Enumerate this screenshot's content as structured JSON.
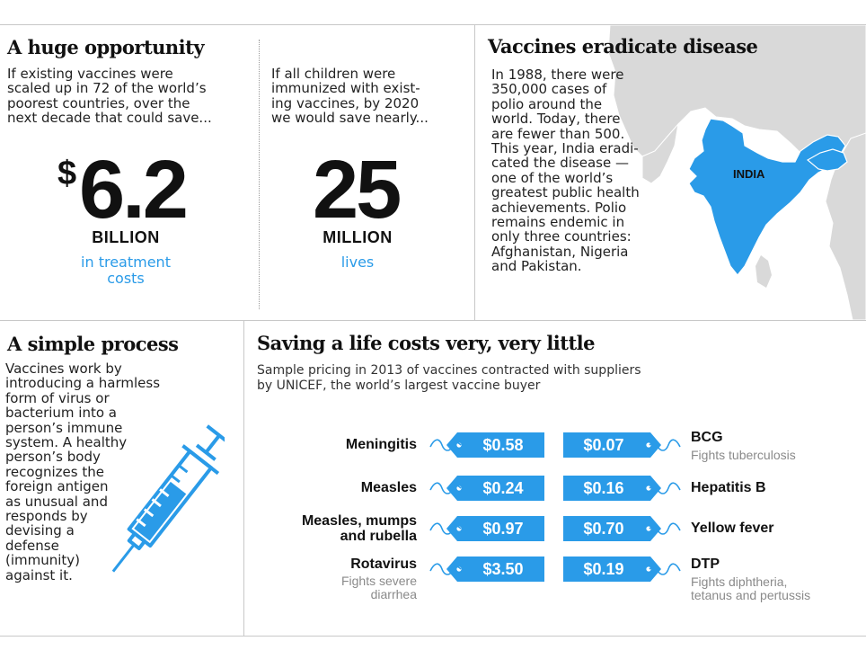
{
  "colors": {
    "accent": "#2a9be8",
    "rule": "#c8c8c8",
    "map_land": "#d9d9d9"
  },
  "opportunity": {
    "heading": "A huge opportunity",
    "left": {
      "text": "If existing vaccines were\nscaled up in 72 of the world’s\npoorest countries, over the\nnext decade that could save...",
      "currency": "$",
      "number": "6.2",
      "unit": "BILLION",
      "caption": "in treatment\ncosts"
    },
    "right": {
      "text": "If all children were\nimmunized with exist-\ning vaccines, by 2020\nwe would save nearly...",
      "number": "25",
      "unit": "MILLION",
      "caption": "lives"
    }
  },
  "eradicate": {
    "heading": "Vaccines eradicate disease",
    "text": "In 1988, there were\n350,000 cases of\npolio around the\nworld. Today, there\nare fewer than 500.\nThis year, India eradi-\ncated the disease —\none of the world’s\ngreatest public health\nachievements. Polio\nremains endemic in\nonly three countries:\nAfghanistan, Nigeria\nand Pakistan.",
    "map_label": "INDIA",
    "map_icon": "india-map"
  },
  "process": {
    "heading": "A simple process",
    "text": "Vaccines work by\nintroducing a harmless\nform of virus or\nbacterium into a\nperson’s immune\nsystem. A healthy\nperson’s body\nrecognizes the\nforeign antigen\nas unusual and\nresponds by\ndevising a\ndefense\n(immunity)\nagainst it.",
    "icon": "syringe-icon"
  },
  "pricing": {
    "heading": "Saving a life costs very, very little",
    "subtitle": "Sample pricing in 2013 of vaccines contracted with suppliers\nby UNICEF, the world’s largest vaccine buyer",
    "left": [
      {
        "name": "Meningitis",
        "price": "$0.58",
        "note": ""
      },
      {
        "name": "Measles",
        "price": "$0.24",
        "note": ""
      },
      {
        "name": "Measles, mumps\nand rubella",
        "price": "$0.97",
        "note": ""
      },
      {
        "name": "Rotavirus",
        "price": "$3.50",
        "note": "Fights severe\ndiarrhea"
      }
    ],
    "right": [
      {
        "name": "BCG",
        "price": "$0.07",
        "note": "Fights tuberculosis"
      },
      {
        "name": "Hepatitis B",
        "price": "$0.16",
        "note": ""
      },
      {
        "name": "Yellow fever",
        "price": "$0.70",
        "note": ""
      },
      {
        "name": "DTP",
        "price": "$0.19",
        "note": "Fights diphtheria,\ntetanus and pertussis"
      }
    ]
  }
}
